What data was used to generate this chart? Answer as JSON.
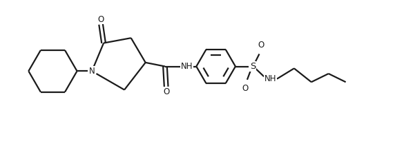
{
  "bg_color": "#ffffff",
  "line_color": "#1a1a1a",
  "lw": 1.6,
  "font_size": 8.5,
  "fig_width": 5.72,
  "fig_height": 2.18,
  "dpi": 100,
  "xlim": [
    0.0,
    9.5
  ],
  "ylim": [
    0.2,
    4.0
  ]
}
